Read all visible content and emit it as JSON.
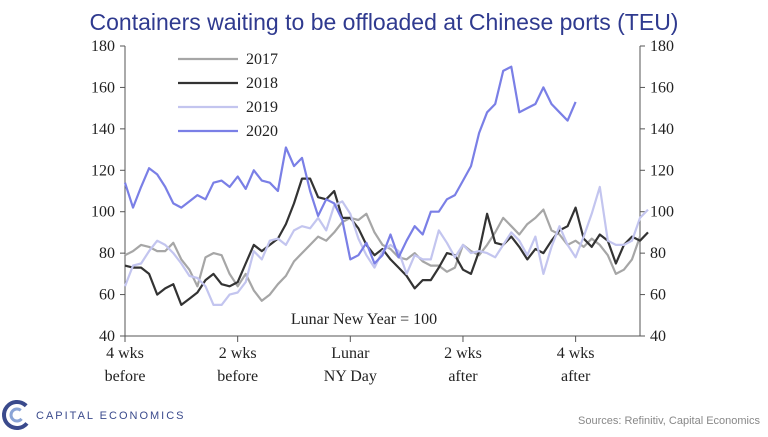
{
  "chart_data": {
    "type": "line",
    "title": "Containers waiting to be offloaded at Chinese ports (TEU)",
    "ylim": [
      40,
      180
    ],
    "yticks": [
      40,
      60,
      80,
      100,
      120,
      140,
      160,
      180
    ],
    "y_axes": "both",
    "grid": false,
    "legend_placement": "top-left",
    "x_ticks": [
      {
        "x": 0,
        "label": [
          "4 wks",
          "before"
        ]
      },
      {
        "x": 14,
        "label": [
          "2 wks",
          "before"
        ]
      },
      {
        "x": 28,
        "label": [
          "Lunar",
          "NY Day"
        ]
      },
      {
        "x": 42,
        "label": [
          "2 wks",
          "after"
        ]
      },
      {
        "x": 56,
        "label": [
          "4 wks",
          "after"
        ]
      }
    ],
    "xlim": [
      0,
      64
    ],
    "annotation": "Lunar  New Year = 100",
    "series": [
      {
        "name": "2017",
        "color": "#a6a6a6",
        "values": [
          79,
          81,
          84,
          83,
          81,
          81,
          85,
          77,
          72,
          64,
          78,
          80,
          79,
          70,
          64,
          70,
          62,
          57,
          60,
          65,
          69,
          76,
          80,
          84,
          88,
          86,
          90,
          95,
          97,
          96,
          99,
          90,
          84,
          82,
          78,
          77,
          80,
          76,
          74,
          74,
          71,
          73,
          84,
          81,
          79,
          84,
          90,
          97,
          93,
          89,
          94,
          97,
          101,
          91,
          89,
          84,
          86,
          83,
          87,
          84,
          79,
          70,
          72,
          77,
          88
        ]
      },
      {
        "name": "2018",
        "color": "#333333",
        "values": [
          74,
          73,
          73,
          70,
          60,
          63,
          65,
          55,
          58,
          61,
          67,
          70,
          65,
          64,
          66,
          75,
          84,
          81,
          84,
          87,
          94,
          104,
          116,
          116,
          107,
          106,
          110,
          97,
          97,
          92,
          84,
          79,
          82,
          77,
          73,
          69,
          63,
          67,
          67,
          73,
          80,
          79,
          72,
          70,
          81,
          99,
          85,
          84,
          88,
          83,
          77,
          82,
          80,
          86,
          91,
          93,
          102,
          87,
          83,
          89,
          86,
          75,
          84,
          88,
          86,
          90
        ]
      },
      {
        "name": "2019",
        "color": "#c3c5ef",
        "values": [
          64,
          74,
          75,
          81,
          86,
          84,
          80,
          75,
          69,
          68,
          64,
          55,
          55,
          60,
          61,
          66,
          81,
          77,
          86,
          87,
          84,
          91,
          93,
          92,
          97,
          91,
          103,
          105,
          99,
          87,
          79,
          73,
          81,
          84,
          81,
          70,
          79,
          77,
          77,
          91,
          85,
          78,
          84,
          80,
          81,
          80,
          78,
          84,
          90,
          86,
          79,
          88,
          70,
          83,
          93,
          84,
          78,
          88,
          99,
          112,
          86,
          84,
          84,
          86,
          97,
          101
        ]
      },
      {
        "name": "2020",
        "color": "#7a7fe6",
        "values": [
          114,
          102,
          112,
          121,
          118,
          112,
          104,
          102,
          105,
          108,
          106,
          114,
          115,
          112,
          117,
          111,
          120,
          115,
          114,
          110,
          131,
          122,
          126,
          110,
          98,
          106,
          104,
          96,
          77,
          79,
          85,
          75,
          79,
          89,
          78,
          86,
          93,
          89,
          100,
          100,
          106,
          108,
          115,
          122,
          138,
          148,
          152,
          168,
          170,
          148,
          150,
          152,
          160,
          152,
          148,
          144,
          153
        ]
      }
    ]
  },
  "branding": {
    "company": "CAPITAL ECONOMICS",
    "source": "Sources: Refinitiv, Capital Economics"
  }
}
